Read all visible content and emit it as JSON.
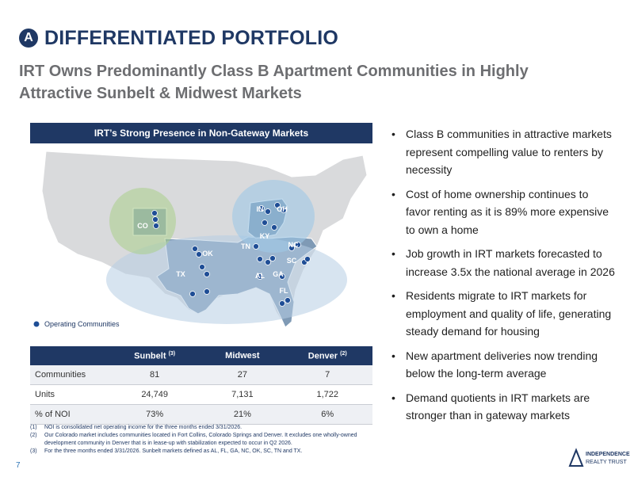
{
  "header": {
    "badge": "A",
    "title": "DIFFERENTIATED PORTFOLIO"
  },
  "subtitle": "IRT Owns Predominantly Class B Apartment Communities in Highly Attractive Sunbelt & Midwest Markets",
  "map": {
    "title": "IRT’s Strong Presence in Non-Gateway Markets",
    "states": [
      "CO",
      "OK",
      "TX",
      "IN",
      "OH",
      "KY",
      "TN",
      "NC",
      "SC",
      "AL",
      "GA",
      "FL"
    ],
    "legend": "Operating Communities"
  },
  "table": {
    "columns": [
      {
        "label": "Sunbelt",
        "note": "(3)"
      },
      {
        "label": "Midwest"
      },
      {
        "label": "Denver",
        "note": "(2)"
      }
    ],
    "rows": [
      [
        "Communities",
        "81",
        "27",
        "7"
      ],
      [
        "Units",
        "24,749",
        "7,131",
        "1,722"
      ],
      [
        "% of NOI",
        "73%",
        "21%",
        "6%"
      ]
    ]
  },
  "footnotes": [
    {
      "marker": "(1)",
      "text": "NOI is consolidated net operating income for the three months ended 3/31/2026."
    },
    {
      "marker": "(2)",
      "text": "Our Colorado market includes communities located in Fort Collins, Colorado Springs and Denver. It excludes one wholly-owned development community in Denver that is in lease-up with stabilization expected to occur in Q2 2026."
    },
    {
      "marker": "(3)",
      "text": "For the three months ended 3/31/2026. Sunbelt markets defined as AL, FL, GA, NC, OK, SC, TN and TX."
    }
  ],
  "bullets": [
    "Class B communities in attractive markets represent compelling value to renters by necessity",
    "Cost of home ownership continues to favor renting as it is 89% more expensive to own a home",
    "Job growth in IRT markets forecasted to increase 3.5x the national average in 2026",
    "Residents migrate to IRT markets for employment and quality of life, generating steady demand for housing",
    "New apartment deliveries now trending below the long-term average",
    "Demand quotients in IRT markets are stronger than in gateway markets"
  ],
  "page_number": "7",
  "logo": {
    "line1": "INDEPENDENCE",
    "line2": "REALTY TRUST"
  }
}
